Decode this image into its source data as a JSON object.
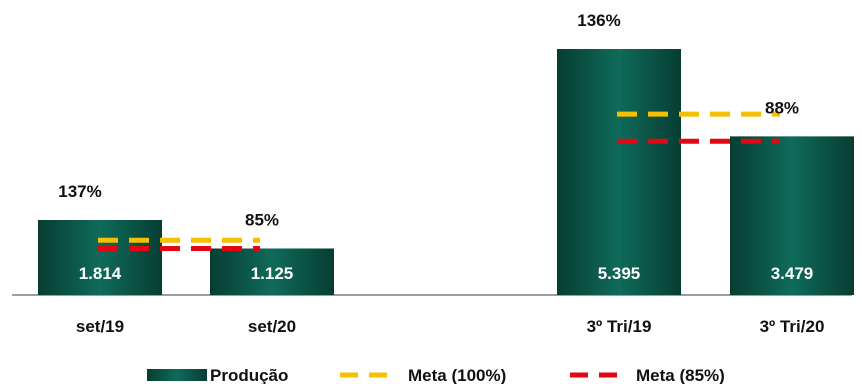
{
  "chart_data": {
    "type": "bar",
    "groups": [
      {
        "categories": [
          "set/19",
          "set/20"
        ]
      },
      {
        "categories": [
          "3º Tri/19",
          "3º Tri/20"
        ]
      }
    ],
    "categories": [
      "set/19",
      "set/20",
      "3º Tri/19",
      "3º Tri/20"
    ],
    "series": [
      {
        "name": "Produção",
        "values": [
          1814,
          1125,
          5395,
          3479
        ],
        "labels": [
          "1.814",
          "1.125",
          "5.395",
          "3.479"
        ],
        "color": "#0f5a4c"
      },
      {
        "name": "Meta (100%)",
        "style": "dashed",
        "values": [
          1324,
          1324,
          3967,
          3967
        ],
        "color": "#f5c000"
      },
      {
        "name": "Meta (85%)",
        "style": "dashed",
        "values": [
          1125,
          1125,
          3372,
          3372
        ],
        "color": "#e30613"
      }
    ],
    "percent_labels": [
      "137%",
      "85%",
      "136%",
      "88%"
    ],
    "legend_position": "bottom",
    "grid": false
  }
}
